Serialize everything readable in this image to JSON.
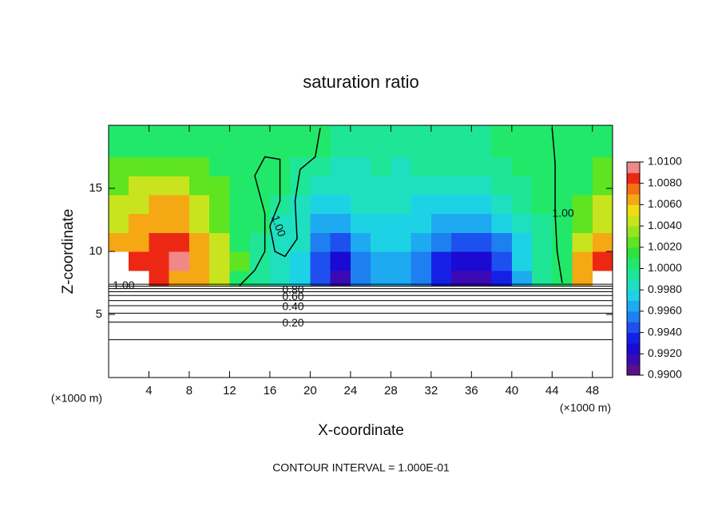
{
  "chart_data": {
    "type": "heatmap",
    "title": "saturation ratio",
    "xlabel": "X-coordinate",
    "ylabel": "Z-coordinate",
    "x_unit_label_left": "(×1000 m)",
    "x_unit_label_right": "(×1000 m)",
    "footer": "CONTOUR INTERVAL = 1.000E-01",
    "xlim": [
      0,
      50
    ],
    "ylim": [
      0,
      20
    ],
    "xticks": [
      4,
      8,
      12,
      16,
      20,
      24,
      28,
      32,
      36,
      40,
      44,
      48
    ],
    "yticks": [
      5,
      10,
      15
    ],
    "x_edges": [
      0,
      2,
      4,
      6,
      8,
      10,
      12,
      14,
      16,
      18,
      20,
      22,
      24,
      26,
      28,
      30,
      32,
      34,
      36,
      38,
      40,
      42,
      44,
      46,
      48,
      50
    ],
    "y_edges": [
      7.3,
      8.5,
      10,
      11.5,
      13,
      14.5,
      16,
      17.5,
      20
    ],
    "z": [
      [
        1.012,
        1.012,
        1.008,
        1.007,
        1.006,
        1.004,
        1.001,
        0.999,
        0.998,
        0.997,
        0.994,
        0.991,
        0.995,
        0.996,
        0.996,
        0.995,
        0.993,
        0.991,
        0.991,
        0.993,
        0.996,
        0.999,
        1.001,
        1.006,
        1.011
      ],
      [
        1.011,
        1.008,
        1.008,
        1.01,
        1.007,
        1.005,
        1.002,
        0.999,
        0.998,
        0.997,
        0.994,
        0.992,
        0.995,
        0.996,
        0.996,
        0.995,
        0.993,
        0.992,
        0.992,
        0.994,
        0.997,
        0.999,
        1.001,
        1.006,
        1.009
      ],
      [
        1.007,
        1.007,
        1.008,
        1.008,
        1.006,
        1.004,
        1.001,
        0.999,
        0.998,
        0.998,
        0.995,
        0.994,
        0.996,
        0.997,
        0.997,
        0.996,
        0.995,
        0.994,
        0.994,
        0.995,
        0.997,
        0.999,
        1.001,
        1.004,
        1.007
      ],
      [
        1.005,
        1.006,
        1.007,
        1.007,
        1.005,
        1.003,
        1.001,
        1.0,
        0.998,
        0.998,
        0.996,
        0.996,
        0.997,
        0.997,
        0.997,
        0.997,
        0.996,
        0.996,
        0.996,
        0.997,
        0.998,
        0.999,
        1.0,
        1.003,
        1.005
      ],
      [
        1.004,
        1.005,
        1.006,
        1.006,
        1.004,
        1.002,
        1.001,
        1.0,
        0.999,
        0.998,
        0.997,
        0.997,
        0.998,
        0.998,
        0.998,
        0.997,
        0.997,
        0.997,
        0.997,
        0.998,
        0.999,
        1.0,
        1.0,
        1.002,
        1.004
      ],
      [
        1.003,
        1.004,
        1.005,
        1.004,
        1.003,
        1.002,
        1.001,
        1.0,
        1.0,
        0.999,
        0.998,
        0.998,
        0.998,
        0.998,
        0.998,
        0.998,
        0.998,
        0.998,
        0.998,
        0.999,
        0.999,
        1.0,
        1.0,
        1.001,
        1.003
      ],
      [
        1.002,
        1.002,
        1.003,
        1.003,
        1.002,
        1.001,
        1.001,
        1.0,
        1.0,
        0.999,
        0.999,
        0.998,
        0.998,
        0.999,
        0.998,
        0.999,
        0.999,
        0.999,
        0.999,
        0.999,
        1.0,
        1.0,
        1.0,
        1.001,
        1.002
      ],
      [
        1.001,
        1.001,
        1.001,
        1.001,
        1.001,
        1.001,
        1.0,
        1.0,
        1.0,
        1.0,
        1.0,
        0.999,
        0.999,
        0.999,
        0.999,
        0.999,
        0.999,
        0.999,
        0.999,
        1.0,
        1.0,
        1.0,
        1.0,
        1.0,
        1.001
      ]
    ],
    "colorbar_lim": [
      0.99,
      1.01
    ],
    "colorbar_ticks": [
      {
        "value": 0.99,
        "label": "0.9900"
      },
      {
        "value": 0.992,
        "label": "0.9920"
      },
      {
        "value": 0.994,
        "label": "0.9940"
      },
      {
        "value": 0.996,
        "label": "0.9960"
      },
      {
        "value": 0.998,
        "label": "0.9980"
      },
      {
        "value": 1.0,
        "label": "1.0000"
      },
      {
        "value": 1.002,
        "label": "1.0020"
      },
      {
        "value": 1.004,
        "label": "1.0040"
      },
      {
        "value": 1.006,
        "label": "1.0060"
      },
      {
        "value": 1.008,
        "label": "1.0080"
      },
      {
        "value": 1.01,
        "label": "1.0100"
      }
    ],
    "colors": [
      "#5c0f8a",
      "#3a0ab4",
      "#1a0ad2",
      "#1420e6",
      "#1e50f0",
      "#1e80f0",
      "#1eaaf0",
      "#1ed2e6",
      "#1ee0c0",
      "#1ee696",
      "#22e86a",
      "#30e23c",
      "#5ee420",
      "#96e41e",
      "#c8e41e",
      "#f0dc14",
      "#f5a814",
      "#f57014",
      "#ec2814",
      "#f08888"
    ],
    "out_of_range_color": "#ffffff",
    "contours": [
      {
        "level": 0.1,
        "y": 3.0
      },
      {
        "level": {
          "value": 0.2,
          "label": "0.20"
        },
        "y": 4.4
      },
      {
        "level": 0.3,
        "y": 5.1
      },
      {
        "level": {
          "value": 0.4,
          "label": "0.40"
        },
        "y": 5.7
      },
      {
        "level": 0.5,
        "y": 6.1
      },
      {
        "level": {
          "value": 0.6,
          "label": "0.60"
        },
        "y": 6.5
      },
      {
        "level": 0.7,
        "y": 6.8
      },
      {
        "level": {
          "value": 0.8,
          "label": "0.80"
        },
        "y": 7.05
      },
      {
        "level": 0.9,
        "y": 7.25
      },
      {
        "level": {
          "value": 1.0,
          "label": "1.00"
        },
        "y": 7.4
      }
    ],
    "field_contours": [
      {
        "level": {
          "value": 1.0,
          "label": "1.00"
        },
        "x": [
          13,
          14.5,
          15.5,
          15.5,
          14.5,
          15.5,
          17,
          17,
          16,
          16.5,
          17.5,
          18.7,
          18.5,
          19,
          20.5,
          21
        ],
        "y": [
          7.3,
          8.5,
          10,
          13,
          16,
          17.5,
          17.3,
          14,
          12,
          10,
          9.6,
          11,
          14,
          16.5,
          17.5,
          19.8
        ]
      },
      {
        "level": {
          "value": 1.0,
          "label": "1.00"
        },
        "x": [
          44,
          44.3,
          44.3,
          44.5,
          45
        ],
        "y": [
          19.8,
          17,
          13,
          10,
          7.5
        ]
      }
    ]
  }
}
